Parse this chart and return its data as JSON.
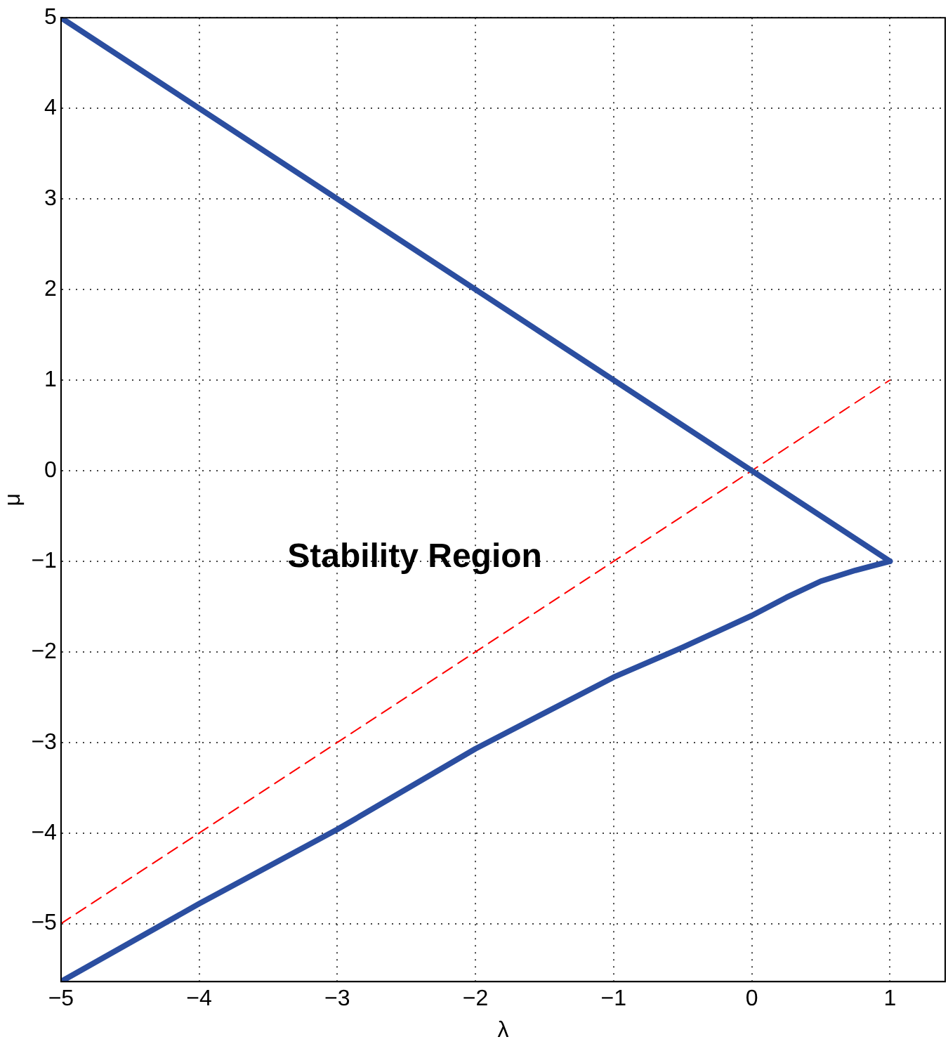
{
  "chart_data": {
    "type": "line",
    "xlabel": "λ",
    "ylabel": "μ",
    "xlim": [
      -5,
      1.4
    ],
    "ylim": [
      -5.64,
      5
    ],
    "xticks": [
      {
        "value": -5,
        "label": "−5"
      },
      {
        "value": -4,
        "label": "−4"
      },
      {
        "value": -3,
        "label": "−3"
      },
      {
        "value": -2,
        "label": "−2"
      },
      {
        "value": -1,
        "label": "−1"
      },
      0,
      1
    ],
    "yticks": [
      {
        "value": -5,
        "label": "−5"
      },
      {
        "value": -4,
        "label": "−4"
      },
      {
        "value": -3,
        "label": "−3"
      },
      {
        "value": -2,
        "label": "−2"
      },
      {
        "value": -1,
        "label": "−1"
      },
      0,
      1,
      2,
      3,
      4,
      5
    ],
    "grid": true,
    "legend": false,
    "marker": "none",
    "series": [
      {
        "color": "#2b4ea0",
        "line_style": "solid",
        "x": [
          -5,
          1
        ],
        "values": [
          5,
          -1
        ]
      },
      {
        "color": "#2b4ea0",
        "line_style": "solid",
        "x": [
          1,
          0.75,
          0.5,
          0.25,
          0,
          -0.5,
          -1,
          -2,
          -3,
          -4,
          -5
        ],
        "values": [
          -1,
          -1.1,
          -1.22,
          -1.4,
          -1.6,
          -1.95,
          -2.28,
          -3.07,
          -3.96,
          -4.78,
          -5.64
        ]
      },
      {
        "color": "#ff0000",
        "line_style": "dashed",
        "x": [
          -5,
          1
        ],
        "values": [
          -5,
          1
        ]
      }
    ],
    "annotations": [
      "Stability Region"
    ]
  }
}
